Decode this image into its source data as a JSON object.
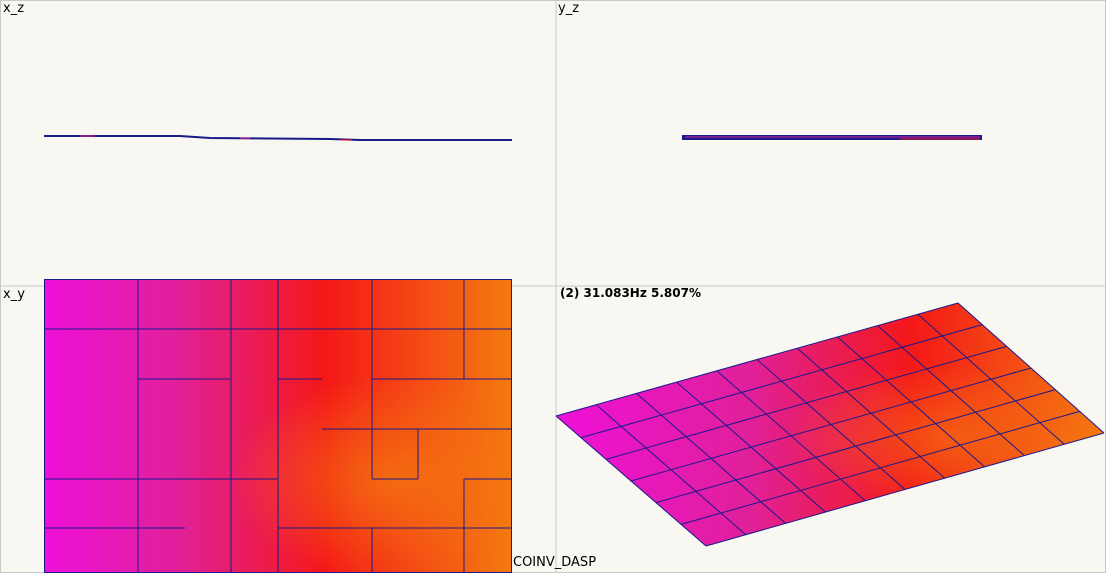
{
  "viewports": {
    "xz": {
      "label": "x_z"
    },
    "yz": {
      "label": "y_z"
    },
    "xy": {
      "label": "x_y"
    },
    "iso": {
      "mode_label": "(2) 31.083Hz 5.807%"
    }
  },
  "footer": {
    "app_label": "COINV_DASP"
  },
  "colors": {
    "background": "#f8f7f1",
    "divider": "#c8c8c8",
    "mesh_line": "#1a1a8c",
    "magenta": "#ee10d8",
    "pink": "#e0209a",
    "red": "#f41818",
    "orange": "#f47a10"
  }
}
